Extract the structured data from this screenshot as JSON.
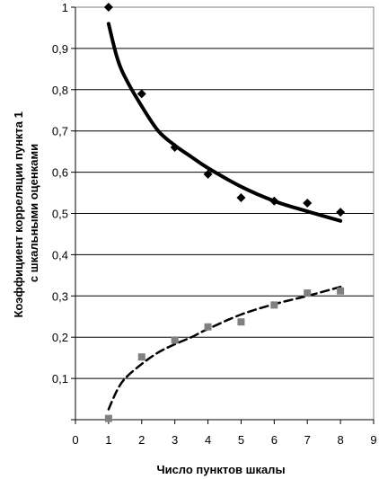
{
  "chart_data": {
    "type": "scatter",
    "title": "",
    "xlabel": "Число пунктов шкалы",
    "ylabel_lines": [
      "Коэффициент корреляции пункта 1",
      "с шкальными оценками"
    ],
    "xlim": [
      0,
      9
    ],
    "ylim": [
      0,
      1
    ],
    "x_ticks": [
      0,
      1,
      2,
      3,
      4,
      5,
      6,
      7,
      8,
      9
    ],
    "y_ticks": [
      0,
      0.1,
      0.2,
      0.3,
      0.4,
      0.5,
      0.6,
      0.7,
      0.8,
      0.9,
      1
    ],
    "x_tick_labels": [
      "0",
      "1",
      "2",
      "3",
      "4",
      "5",
      "6",
      "7",
      "8",
      "9"
    ],
    "y_tick_labels": [
      "",
      "0,1",
      "0,2",
      "0,3",
      "0,4",
      "0,5",
      "0,6",
      "0,7",
      "0,8",
      "0,9",
      "1"
    ],
    "grid": "horizontal",
    "legend": "none",
    "series": [
      {
        "marker": "diamond",
        "trend": "solid",
        "color": "#000000",
        "points": [
          [
            1,
            1.0
          ],
          [
            2,
            0.79
          ],
          [
            3,
            0.66
          ],
          [
            4,
            0.595
          ],
          [
            5,
            0.538
          ],
          [
            6,
            0.53
          ],
          [
            7,
            0.525
          ],
          [
            8,
            0.503
          ]
        ],
        "trendline": [
          [
            1.0,
            0.96
          ],
          [
            1.25,
            0.88
          ],
          [
            1.5,
            0.83
          ],
          [
            2,
            0.76
          ],
          [
            2.5,
            0.7
          ],
          [
            3,
            0.665
          ],
          [
            3.5,
            0.637
          ],
          [
            4,
            0.61
          ],
          [
            5,
            0.565
          ],
          [
            6,
            0.53
          ],
          [
            7,
            0.505
          ],
          [
            8,
            0.482
          ]
        ]
      },
      {
        "marker": "square",
        "trend": "dashed",
        "color": "#808080",
        "points": [
          [
            1,
            0.003
          ],
          [
            2,
            0.152
          ],
          [
            3,
            0.193
          ],
          [
            4,
            0.225
          ],
          [
            5,
            0.237
          ],
          [
            6,
            0.278
          ],
          [
            7,
            0.307
          ],
          [
            8,
            0.312
          ]
        ],
        "trendline": [
          [
            1.0,
            0.025
          ],
          [
            1.25,
            0.07
          ],
          [
            1.5,
            0.1
          ],
          [
            2,
            0.135
          ],
          [
            2.5,
            0.163
          ],
          [
            3,
            0.183
          ],
          [
            3.5,
            0.2
          ],
          [
            4,
            0.22
          ],
          [
            5,
            0.255
          ],
          [
            6,
            0.28
          ],
          [
            7,
            0.3
          ],
          [
            8,
            0.322
          ]
        ]
      }
    ]
  }
}
